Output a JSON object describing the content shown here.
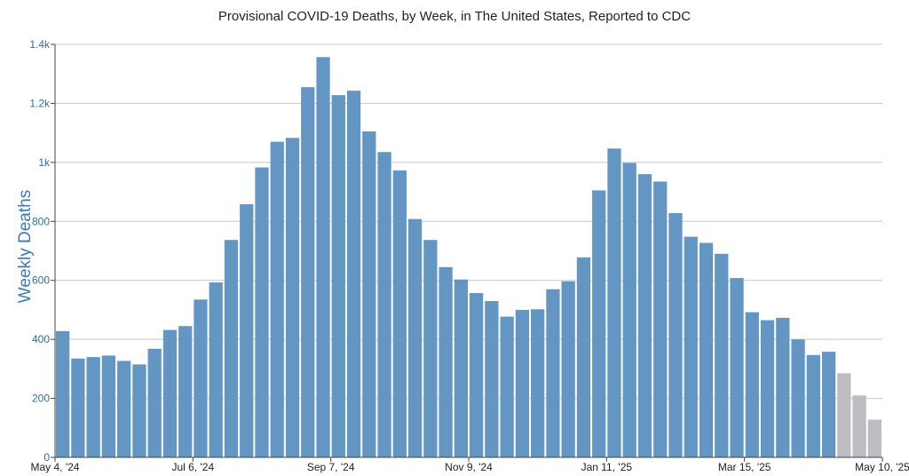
{
  "chart_data": {
    "type": "bar",
    "title": "Provisional COVID-19 Deaths, by Week, in The United States, Reported to CDC",
    "xlabel": "",
    "ylabel": "Weekly Deaths",
    "ylim": [
      0,
      1400
    ],
    "yticks": [
      0,
      200,
      400,
      600,
      800,
      1000,
      1200,
      1400
    ],
    "ytick_labels": [
      "0",
      "200",
      "400",
      "600",
      "800",
      "1k",
      "1.2k",
      "1.4k"
    ],
    "xtick_labels": [
      "May 4, '24",
      "Jul 6, '24",
      "Sep 7, '24",
      "Nov 9, '24",
      "Jan 11, '25",
      "Mar 15, '25",
      "May 10, '25"
    ],
    "grid": true,
    "colors": {
      "reported": "#6496c4",
      "provisional": "#bdbdc1",
      "grid": "#c8c8c8",
      "axis": "#444444",
      "ylabel": "#3d7ab5"
    },
    "values": [
      428,
      335,
      340,
      345,
      327,
      315,
      368,
      432,
      445,
      535,
      593,
      737,
      858,
      983,
      1070,
      1083,
      1255,
      1357,
      1228,
      1243,
      1105,
      1035,
      973,
      808,
      737,
      645,
      603,
      557,
      530,
      477,
      500,
      502,
      570,
      597,
      678,
      905,
      1047,
      998,
      960,
      935,
      828,
      748,
      727,
      690,
      608,
      492,
      465,
      473,
      400,
      347,
      358,
      285,
      210,
      128
    ],
    "provisional_count": 3
  }
}
